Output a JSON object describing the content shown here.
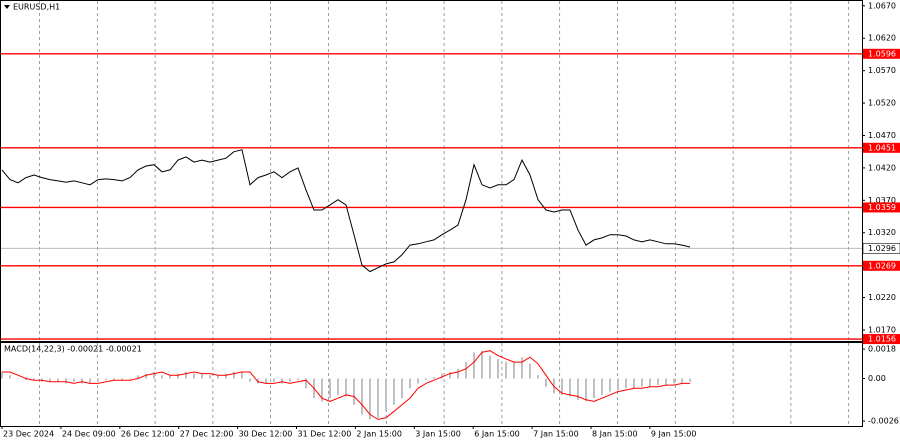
{
  "chart_data": {
    "type": "line",
    "title": "EURUSD,H1",
    "color": "#000000",
    "values": [
      1.0417,
      1.0402,
      1.0397,
      1.0405,
      1.0409,
      1.0405,
      1.0402,
      1.04,
      1.0398,
      1.04,
      1.0397,
      1.0394,
      1.0402,
      1.0403,
      1.0402,
      1.04,
      1.0405,
      1.0417,
      1.0423,
      1.0425,
      1.0414,
      1.0417,
      1.0432,
      1.0437,
      1.0429,
      1.0432,
      1.0429,
      1.0432,
      1.0435,
      1.0445,
      1.0448,
      1.0394,
      1.0405,
      1.0409,
      1.0414,
      1.0405,
      1.0414,
      1.042,
      1.0386,
      1.0355,
      1.0355,
      1.0363,
      1.0371,
      1.0363,
      1.0317,
      1.027,
      1.026,
      1.0266,
      1.0272,
      1.0275,
      1.0286,
      1.0301,
      1.0303,
      1.0306,
      1.0309,
      1.0317,
      1.0324,
      1.0332,
      1.0371,
      1.0425,
      1.0394,
      1.0389,
      1.0394,
      1.0394,
      1.0402,
      1.0432,
      1.0409,
      1.0371,
      1.0355,
      1.0352,
      1.0355,
      1.0355,
      1.0324,
      1.0301,
      1.0309,
      1.0312,
      1.0317,
      1.0317,
      1.0315,
      1.0309,
      1.0306,
      1.0309,
      1.0306,
      1.0303,
      1.0303,
      1.0301,
      1.0298
    ],
    "ylim": [
      1.0153,
      1.0679
    ],
    "yticks": [
      {
        "value": 1.067,
        "label": "1.0670"
      },
      {
        "value": 1.062,
        "label": "1.0620"
      },
      {
        "value": 1.057,
        "label": "1.0570"
      },
      {
        "value": 1.052,
        "label": "1.0520"
      },
      {
        "value": 1.047,
        "label": "1.0470"
      },
      {
        "value": 1.042,
        "label": "1.0420"
      },
      {
        "value": 1.037,
        "label": "1.0370"
      },
      {
        "value": 1.032,
        "label": "1.0320"
      },
      {
        "value": 1.027,
        "label": "1.0270"
      },
      {
        "value": 1.022,
        "label": "1.0220"
      },
      {
        "value": 1.017,
        "label": "1.0170"
      }
    ],
    "levels": [
      {
        "value": 1.0596,
        "label": "1.0596"
      },
      {
        "value": 1.0451,
        "label": "1.0451"
      },
      {
        "value": 1.0359,
        "label": "1.0359"
      },
      {
        "value": 1.0269,
        "label": "1.0269"
      },
      {
        "value": 1.0156,
        "label": "1.0156"
      }
    ],
    "level_color": "#ff0000",
    "current": {
      "value": 1.0296,
      "label": "1.0296"
    },
    "xlabels": [
      "23 Dec 2024",
      "24 Dec 09:00",
      "26 Dec 12:00",
      "27 Dec 12:00",
      "30 Dec 12:00",
      "31 Dec 12:00",
      "2 Jan 15:00",
      "3 Jan 15:00",
      "6 Jan 15:00",
      "7 Jan 15:00",
      "8 Jan 15:00",
      "9 Jan 15:00"
    ],
    "grid": true,
    "macd": {
      "title": "MACD(14,22,3) -0.00021 -0.00021",
      "color": "#c0c0c0",
      "signal_color": "#ff0000",
      "values": [
        0.0004,
        0.0002,
        0,
        -0.0001,
        -0.0001,
        -0.0002,
        -0.0002,
        -0.0002,
        -0.0003,
        -0.0002,
        -0.0003,
        -0.0003,
        -0.0002,
        -0.0001,
        -0.0001,
        -0.0001,
        0,
        0.0002,
        0.0003,
        0.0004,
        0.0002,
        0.0002,
        0.0003,
        0.0004,
        0.0003,
        0.0003,
        0.0002,
        0.0002,
        0.0003,
        0.0004,
        0.0004,
        -0.0002,
        -0.0003,
        -0.0003,
        -0.0002,
        -0.0003,
        -0.0002,
        -0.0001,
        -0.0006,
        -0.0012,
        -0.0014,
        -0.0012,
        -0.001,
        -0.0011,
        -0.0016,
        -0.0022,
        -0.0025,
        -0.0024,
        -0.002,
        -0.0016,
        -0.0012,
        -0.0006,
        -0.0003,
        -0.0001,
        0.0001,
        0.0003,
        0.0004,
        0.0006,
        0.001,
        0.0016,
        0.0017,
        0.0014,
        0.0012,
        0.001,
        0.001,
        0.0013,
        0.0009,
        0.0002,
        -0.0005,
        -0.0009,
        -0.001,
        -0.0011,
        -0.0013,
        -0.0014,
        -0.0012,
        -0.001,
        -0.0008,
        -0.0007,
        -0.0006,
        -0.0006,
        -0.0005,
        -0.0005,
        -0.0004,
        -0.0004,
        -0.0003,
        -0.0003,
        -0.0002
      ],
      "signal": [
        0.0004,
        0.0004,
        0.0002,
        0,
        -0.0001,
        -0.0001,
        -0.0002,
        -0.0002,
        -0.0002,
        -0.0003,
        -0.0002,
        -0.0003,
        -0.0003,
        -0.0002,
        -0.0001,
        -0.0001,
        -0.0001,
        0,
        0.0002,
        0.0003,
        0.0004,
        0.0002,
        0.0002,
        0.0003,
        0.0004,
        0.0003,
        0.0003,
        0.0002,
        0.0002,
        0.0003,
        0.0004,
        0.0004,
        -0.0002,
        -0.0003,
        -0.0003,
        -0.0002,
        -0.0003,
        -0.0002,
        -0.0001,
        -0.0006,
        -0.0012,
        -0.0014,
        -0.0012,
        -0.001,
        -0.0011,
        -0.0016,
        -0.0022,
        -0.0025,
        -0.0024,
        -0.002,
        -0.0016,
        -0.0012,
        -0.0006,
        -0.0003,
        -0.0001,
        0.0001,
        0.0003,
        0.0004,
        0.0006,
        0.001,
        0.0016,
        0.0017,
        0.0014,
        0.0012,
        0.001,
        0.001,
        0.0013,
        0.0009,
        0.0002,
        -0.0005,
        -0.0009,
        -0.001,
        -0.0011,
        -0.0013,
        -0.0014,
        -0.0012,
        -0.001,
        -0.0008,
        -0.0007,
        -0.0006,
        -0.0006,
        -0.0005,
        -0.0005,
        -0.0004,
        -0.0004,
        -0.0003,
        -0.0003
      ],
      "ylim": [
        -0.00284,
        0.00217
      ],
      "yticks": [
        {
          "value": 0.0018,
          "label": "0.0018"
        },
        {
          "value": 0,
          "label": "0.00"
        },
        {
          "value": -0.0026,
          "label": "-0.0026"
        }
      ]
    }
  }
}
